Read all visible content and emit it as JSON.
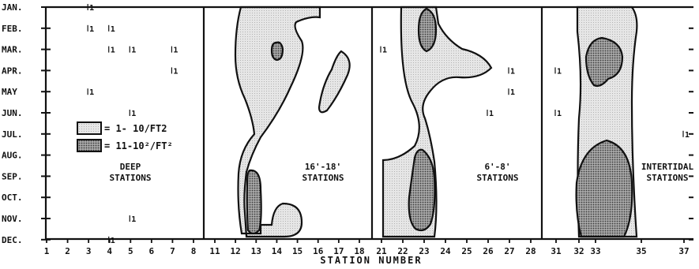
{
  "chart_data": {
    "type": "contour",
    "xlabel": "STATION NUMBER",
    "months": [
      "JAN.",
      "FEB.",
      "MAR.",
      "APR.",
      "MAY",
      "JUN.",
      "JUL.",
      "AUG.",
      "SEP.",
      "OCT.",
      "NOV.",
      "DEC."
    ],
    "panels": [
      {
        "label": [
          "DEEP",
          "STATIONS"
        ],
        "ticks": [
          "1",
          "2",
          "3",
          "4",
          "5",
          "6",
          "7",
          "8"
        ]
      },
      {
        "label": [
          "16'-18'",
          "STATIONS"
        ],
        "ticks": [
          "11",
          "12",
          "13",
          "14",
          "15",
          "16",
          "17",
          "18"
        ]
      },
      {
        "label": [
          "6'-8'",
          "STATIONS"
        ],
        "ticks": [
          "21",
          "22",
          "23",
          "24",
          "25",
          "26",
          "27",
          "28"
        ]
      },
      {
        "label": [
          "INTERTIDAL",
          "STATIONS"
        ],
        "ticks": [
          "31",
          "32",
          "33",
          "35",
          "37"
        ]
      }
    ],
    "legend": [
      {
        "label": "= 1- 10/FT2",
        "fill": "light stipple"
      },
      {
        "label": "= 11-10²/FT²",
        "fill": "dark stipple"
      }
    ],
    "observations": [
      {
        "station": 3,
        "month": "JAN.",
        "label": "1"
      },
      {
        "station": 3,
        "month": "FEB.",
        "label": "1"
      },
      {
        "station": 4,
        "month": "FEB.",
        "label": "1"
      },
      {
        "station": 4,
        "month": "MAR.",
        "label": "1"
      },
      {
        "station": 5,
        "month": "MAR.",
        "label": "1"
      },
      {
        "station": 7,
        "month": "MAR.",
        "label": "1"
      },
      {
        "station": 7,
        "month": "APR.",
        "label": "1"
      },
      {
        "station": 3,
        "month": "MAY",
        "label": "1"
      },
      {
        "station": 5,
        "month": "JUN.",
        "label": "1"
      },
      {
        "station": 5,
        "month": "NOV.",
        "label": "1"
      },
      {
        "station": 4,
        "month": "DEC.",
        "label": "1"
      },
      {
        "station": 21,
        "month": "MAR.",
        "label": "1"
      },
      {
        "station": 27,
        "month": "APR.",
        "label": "1"
      },
      {
        "station": 27,
        "month": "MAY",
        "label": "1"
      },
      {
        "station": 26,
        "month": "JUN.",
        "label": "1"
      },
      {
        "station": 31,
        "month": "APR.",
        "label": "1"
      },
      {
        "station": 31,
        "month": "JUN.",
        "label": "1"
      },
      {
        "station": 37,
        "month": "JUL.",
        "label": "1"
      }
    ],
    "colors": {
      "ink": "#111111",
      "light_fill": "#e4e4e4",
      "dark_fill": "#8a8a8a"
    }
  }
}
